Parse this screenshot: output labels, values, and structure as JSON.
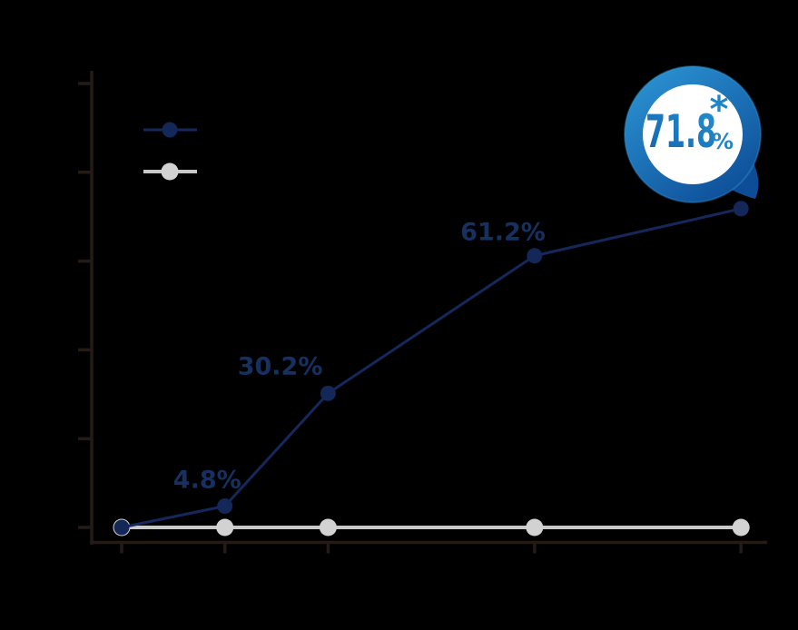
{
  "page": {
    "background": "#000000"
  },
  "colors": {
    "axis": "#241a16",
    "point_label_text": "#163060",
    "treatment_line": "#14285c",
    "treatment_dot": "#132759",
    "control_line": "#c9c9c9",
    "control_dot": "#d2d2d3",
    "badge_ring_light": "#2b93d2",
    "badge_ring_dark": "#0c4b96",
    "badge_ring_edge": "#3aa0dc",
    "badge_tail": "#0d4c97",
    "badge_face": "#ffffff",
    "badge_value_dark": "#1463ae",
    "badge_value_light": "#2490d0",
    "badge_percent": "#2187cb",
    "badge_asterisk": "#1f83c8"
  },
  "legend": {
    "items": [
      {
        "name": "treatment",
        "label": "",
        "color": "#14285c",
        "dot_color": "#132759"
      },
      {
        "name": "control",
        "label": "",
        "color": "#c9c9c9",
        "dot_color": "#d2d2d3"
      }
    ]
  },
  "chart_data": {
    "type": "line",
    "title": "",
    "xlabel": "",
    "ylabel": "",
    "grid": false,
    "legend_position": "top-left",
    "x": [
      0,
      1,
      2,
      4,
      6
    ],
    "ylim": [
      0,
      100
    ],
    "y_ticks": [
      0,
      20,
      40,
      60,
      80,
      100
    ],
    "series": [
      {
        "name": "control",
        "color": "#c9c9c9",
        "dot_color": "#d2d2d3",
        "values": [
          0,
          0,
          0,
          0,
          0
        ],
        "point_labels": [
          "",
          "",
          "",
          "",
          ""
        ]
      },
      {
        "name": "treatment",
        "color": "#14285c",
        "dot_color": "#132759",
        "values": [
          0,
          4.8,
          30.2,
          61.2,
          71.8
        ],
        "point_labels": [
          "",
          "4.8%",
          "30.2%",
          "61.2%",
          ""
        ]
      }
    ],
    "callout": {
      "value": "71.8",
      "unit": "%",
      "note_marker": "*",
      "attached_series": "treatment",
      "attached_point_index": 4
    }
  }
}
